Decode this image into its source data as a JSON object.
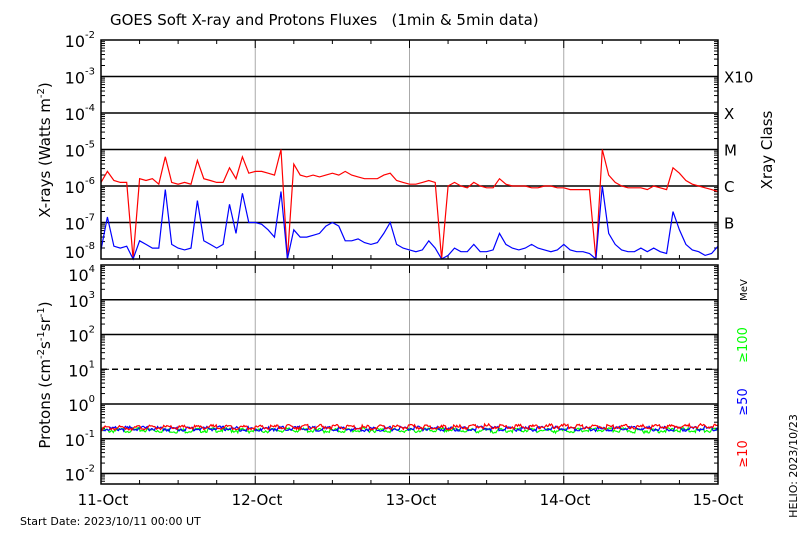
{
  "chart_data": [
    {
      "type": "line",
      "title": "GOES Soft X-ray and Protons Fluxes   (1min & 5min data)",
      "ylabel": "X-rays (Watts m",
      "ylabel_sup": "-2",
      "ylabel_close": ")",
      "yscale": "log",
      "ylim": [
        1e-08,
        0.01
      ],
      "ytick_exponents": [
        -2,
        -3,
        -4,
        -5,
        -6,
        -7,
        -8
      ],
      "grid": "horizontal at decades 1e-3..1e-7, vertical at day boundaries",
      "right_axis_label": "Xray Class",
      "class_labels": [
        {
          "label": "X10",
          "flux": 0.001
        },
        {
          "label": "X",
          "flux": 0.0001
        },
        {
          "label": "M",
          "flux": 1e-05
        },
        {
          "label": "C",
          "flux": 1e-06
        },
        {
          "label": "B",
          "flux": 1e-07
        }
      ],
      "series": [
        {
          "color": "#ff0000",
          "log10_values": [
            -5.9,
            -5.6,
            -5.85,
            -5.9,
            -5.9,
            -8,
            -5.8,
            -5.85,
            -5.8,
            -5.95,
            -5.2,
            -5.9,
            -5.95,
            -5.9,
            -5.95,
            -5.3,
            -5.8,
            -5.85,
            -5.9,
            -5.9,
            -5.5,
            -5.8,
            -5.2,
            -5.65,
            -5.6,
            -5.6,
            -5.65,
            -5.7,
            -5.0,
            -8,
            -5.4,
            -5.7,
            -5.75,
            -5.7,
            -5.75,
            -5.7,
            -5.65,
            -5.7,
            -5.6,
            -5.7,
            -5.75,
            -5.8,
            -5.8,
            -5.8,
            -5.7,
            -5.65,
            -5.85,
            -5.9,
            -5.95,
            -5.95,
            -5.9,
            -5.85,
            -5.9,
            -8,
            -6.0,
            -5.9,
            -6.0,
            -6.05,
            -5.9,
            -6.0,
            -6.05,
            -6.05,
            -5.8,
            -5.95,
            -6.0,
            -6.0,
            -6.0,
            -6.05,
            -6.05,
            -6.0,
            -6.0,
            -6.05,
            -6.05,
            -6.1,
            -6.1,
            -6.1,
            -6.1,
            -8,
            -5.0,
            -5.7,
            -5.9,
            -6.0,
            -6.05,
            -6.05,
            -6.05,
            -6.1,
            -6.0,
            -6.05,
            -6.1,
            -5.5,
            -5.65,
            -5.85,
            -5.95,
            -6.0,
            -6.05,
            -6.1,
            -6.15
          ]
        },
        {
          "color": "#0000ff",
          "log10_values": [
            -7.75,
            -6.85,
            -7.65,
            -7.7,
            -7.65,
            -8,
            -7.5,
            -7.6,
            -7.7,
            -7.7,
            -6.1,
            -7.6,
            -7.7,
            -7.75,
            -7.7,
            -6.4,
            -7.5,
            -7.6,
            -7.7,
            -7.6,
            -6.5,
            -7.3,
            -6.2,
            -7.0,
            -7.0,
            -7.05,
            -7.2,
            -7.4,
            -6.15,
            -8,
            -7.2,
            -7.4,
            -7.4,
            -7.35,
            -7.3,
            -7.1,
            -7.0,
            -7.1,
            -7.5,
            -7.5,
            -7.45,
            -7.55,
            -7.6,
            -7.55,
            -7.3,
            -7.0,
            -7.6,
            -7.7,
            -7.75,
            -7.8,
            -7.75,
            -7.5,
            -7.7,
            -8,
            -7.9,
            -7.7,
            -7.8,
            -7.8,
            -7.6,
            -7.8,
            -7.8,
            -7.75,
            -7.3,
            -7.6,
            -7.7,
            -7.75,
            -7.7,
            -7.6,
            -7.7,
            -7.75,
            -7.8,
            -7.75,
            -7.6,
            -7.75,
            -7.8,
            -7.8,
            -7.85,
            -8,
            -6.0,
            -7.3,
            -7.6,
            -7.75,
            -7.8,
            -7.8,
            -7.7,
            -7.8,
            -7.7,
            -7.8,
            -7.85,
            -6.7,
            -7.2,
            -7.6,
            -7.75,
            -7.8,
            -7.9,
            -7.85,
            -7.65
          ]
        }
      ]
    },
    {
      "type": "line",
      "ylabel": "Protons (cm",
      "ylabel_parts": [
        "-2",
        "s",
        "-1",
        "sr",
        "-1",
        ")"
      ],
      "yscale": "log",
      "ylim": [
        0.005,
        10000.0
      ],
      "ytick_exponents": [
        4,
        3,
        2,
        1,
        0,
        -1,
        -2
      ],
      "threshold_dashed": 10,
      "energy_unit": "MeV",
      "series": [
        {
          "name": "≥100",
          "color": "#00ff00",
          "values": [
            0.17,
            0.18,
            0.17,
            0.18,
            0.17,
            0.18,
            0.17,
            0.18,
            0.17,
            0.18,
            0.17,
            0.18,
            0.17,
            0.18,
            0.17,
            0.18,
            0.17
          ]
        },
        {
          "name": "≥50",
          "color": "#0000ff",
          "values": [
            0.19,
            0.2,
            0.19,
            0.2,
            0.19,
            0.2,
            0.19,
            0.19,
            0.2,
            0.19,
            0.2,
            0.19,
            0.2,
            0.19,
            0.2,
            0.19,
            0.2
          ]
        },
        {
          "name": "≥10",
          "color": "#ff0000",
          "values": [
            0.2,
            0.21,
            0.21,
            0.22,
            0.21,
            0.22,
            0.22,
            0.21,
            0.22,
            0.21,
            0.23,
            0.22,
            0.23,
            0.22,
            0.22,
            0.23,
            0.23
          ]
        }
      ]
    }
  ],
  "xaxis": {
    "tick_labels": [
      "11-Oct",
      "12-Oct",
      "13-Oct",
      "14-Oct",
      "15-Oct"
    ]
  },
  "footer": {
    "start_date": "Start Date: 2023/10/11 00:00 UT",
    "helio": "HELIO: 2023/10/23"
  }
}
